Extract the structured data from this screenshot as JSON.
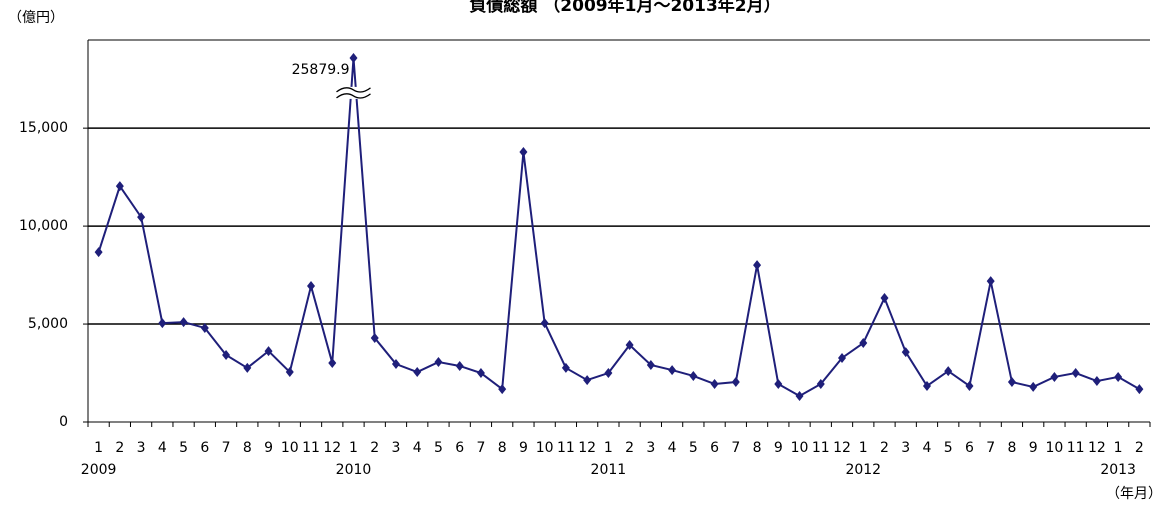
{
  "chart_data": {
    "type": "line",
    "title": "負債総額 （2009年1月〜2013年2月）",
    "y_axis_label": "（億円）",
    "x_axis_label": "（年月）",
    "categories": [
      "1",
      "2",
      "3",
      "4",
      "5",
      "6",
      "7",
      "8",
      "9",
      "10",
      "11",
      "12",
      "1",
      "2",
      "3",
      "4",
      "5",
      "6",
      "7",
      "8",
      "9",
      "10",
      "11",
      "12",
      "1",
      "2",
      "3",
      "4",
      "5",
      "6",
      "7",
      "8",
      "9",
      "10",
      "11",
      "12",
      "1",
      "2",
      "3",
      "4",
      "5",
      "6",
      "7",
      "8",
      "9",
      "10",
      "11",
      "12",
      "1",
      "2"
    ],
    "years": [
      "2009",
      null,
      null,
      null,
      null,
      null,
      null,
      null,
      null,
      null,
      null,
      null,
      "2010",
      null,
      null,
      null,
      null,
      null,
      null,
      null,
      null,
      null,
      null,
      null,
      "2011",
      null,
      null,
      null,
      null,
      null,
      null,
      null,
      null,
      null,
      null,
      null,
      "2012",
      null,
      null,
      null,
      null,
      null,
      null,
      null,
      null,
      null,
      null,
      null,
      "2013",
      null
    ],
    "series": [
      {
        "name": "負債総額",
        "color": "#1f1f7a",
        "values": [
          8670,
          12040,
          10460,
          5050,
          5100,
          4800,
          3420,
          2760,
          3620,
          2550,
          6940,
          3010,
          25879.9,
          4290,
          2960,
          2550,
          3060,
          2860,
          2500,
          1680,
          13780,
          5050,
          2760,
          2140,
          2500,
          3930,
          2910,
          2650,
          2350,
          1940,
          2040,
          8010,
          1940,
          1330,
          1940,
          3270,
          4030,
          6330,
          3570,
          1840,
          2600,
          1840,
          7190,
          2040,
          1790,
          2300,
          2500,
          2090,
          2300,
          1680
        ],
        "value_labels": [
          null,
          null,
          null,
          null,
          null,
          null,
          null,
          null,
          null,
          null,
          null,
          null,
          "25879.9",
          null,
          null,
          null,
          null,
          null,
          null,
          null,
          null,
          null,
          null,
          null,
          null,
          null,
          null,
          null,
          null,
          null,
          null,
          null,
          null,
          null,
          null,
          null,
          null,
          null,
          null,
          null,
          null,
          null,
          null,
          null,
          null,
          null,
          null,
          null,
          null,
          null
        ]
      }
    ],
    "ylim": [
      0,
      19500
    ],
    "yticks": [
      0,
      {
        "value": 5000,
        "label": "5,000"
      },
      {
        "value": 10000,
        "label": "10,000"
      },
      {
        "value": 15000,
        "label": "15,000"
      }
    ],
    "y_break": [
      16800,
      24100
    ],
    "grid": true
  }
}
